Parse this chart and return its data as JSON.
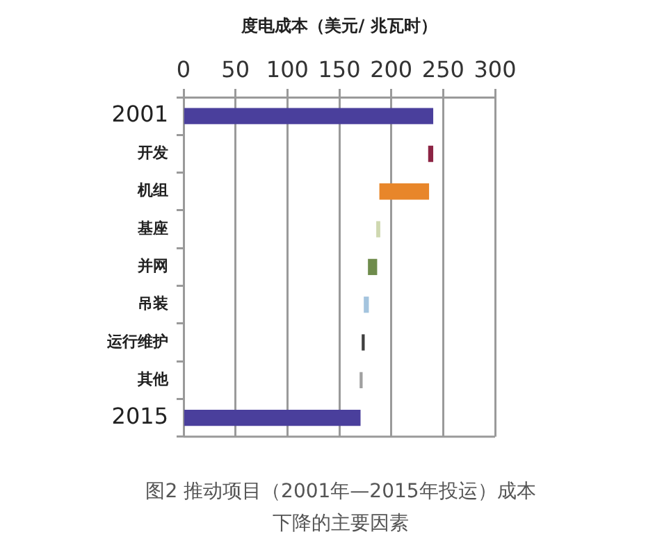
{
  "chart_data": {
    "type": "bar",
    "orientation": "horizontal",
    "xlabel": "度电成本（美元/ 兆瓦时）",
    "categories": [
      "2001",
      "开发",
      "机组",
      "基座",
      "并网",
      "吊装",
      "运行维护",
      "其他",
      "2015"
    ],
    "values": [
      240,
      -4,
      -47,
      -3,
      -8,
      -4,
      -2,
      -2,
      170
    ],
    "base": [
      0,
      240,
      236,
      189,
      186,
      178,
      174,
      172,
      0
    ],
    "colors": [
      "#4a3f9c",
      "#8c2444",
      "#e8862a",
      "#cfd8b0",
      "#6f8c4c",
      "#a4c4de",
      "#3f3f3f",
      "#a0a0a0",
      "#4a3f9c"
    ],
    "xlim": [
      0,
      300
    ],
    "xticks": [
      0,
      50,
      100,
      150,
      200,
      250,
      300
    ],
    "grid": "x",
    "annotations": [
      "图2 推动项目（2001年—2015年投运）成本下降的主要因素"
    ]
  }
}
